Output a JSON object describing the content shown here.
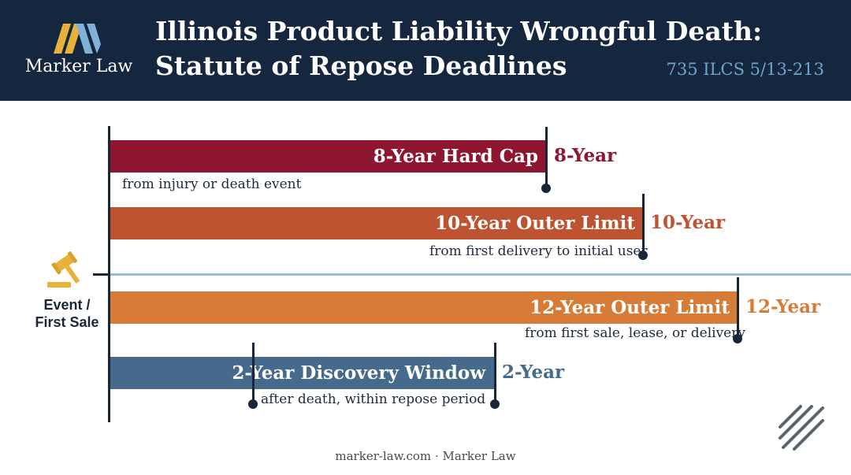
{
  "header": {
    "logo_name": "Marker Law",
    "title_line1": "Illinois Product Liability Wrongful Death:",
    "title_line2": "Statute of Repose Deadlines",
    "citation": "735 ILCS 5/13-213"
  },
  "timeline": {
    "event_label_line1": "Event /",
    "event_label_line2": "First Sale",
    "bars": [
      {
        "bar_label": "8-Year Hard Cap",
        "end_label": "8-Year",
        "note": "from injury or death event",
        "years": 8,
        "color": "#8e1630"
      },
      {
        "bar_label": "10-Year Outer Limit",
        "end_label": "10-Year",
        "note": "from first delivery to initial user",
        "years": 10,
        "color": "#bd5330"
      },
      {
        "bar_label": "12-Year Outer Limit",
        "end_label": "12-Year",
        "note": "from first sale, lease, or delivery",
        "years": 12,
        "color": "#d77c37"
      },
      {
        "bar_label": "2-Year Discovery Window",
        "end_label": "2-Year",
        "note": "after death, within repose period",
        "years": 2,
        "color": "#456a8c"
      }
    ]
  },
  "colors": {
    "header_bg": "#15263f",
    "citation": "#6fa5c9",
    "event_line": "#8ec1dc",
    "logo_gold": "#e8b23a",
    "logo_blue": "#7fb2d6"
  },
  "icons": [
    "marker-law-logo-icon",
    "gavel-icon",
    "diagonal-stripes-icon"
  ],
  "footer": {
    "text": "marker-law.com · Marker Law"
  }
}
